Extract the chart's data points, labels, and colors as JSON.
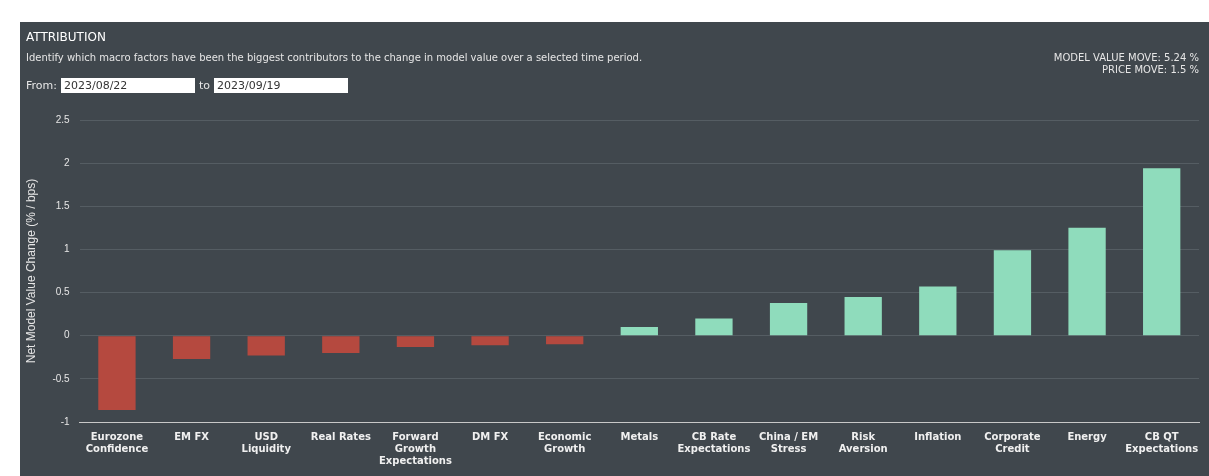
{
  "chart_data": {
    "type": "bar",
    "title": "ATTRIBUTION",
    "subtitle": "Identify which macro factors have been the biggest contributors to the change in model value over a selected time period.",
    "ylabel": "Net Model Value Change (% / bps)",
    "categories": [
      "Eurozone Confidence",
      "EM FX",
      "USD Liquidity",
      "Real Rates",
      "Forward Growth Expectations",
      "DM FX",
      "Economic Growth",
      "Metals",
      "CB Rate Expectations",
      "China / EM Stress",
      "Risk Aversion",
      "Inflation",
      "Corporate Credit",
      "Energy",
      "CB QT Expectations"
    ],
    "values": [
      -0.86,
      -0.27,
      -0.23,
      -0.2,
      -0.13,
      -0.11,
      -0.1,
      0.1,
      0.2,
      0.38,
      0.45,
      0.57,
      0.99,
      1.25,
      1.94
    ],
    "colors": [
      "#b5493f",
      "#b5493f",
      "#b5493f",
      "#b5493f",
      "#b5493f",
      "#b5493f",
      "#b5493f",
      "#8fdcbc",
      "#8fdcbc",
      "#8fdcbc",
      "#8fdcbc",
      "#8fdcbc",
      "#8fdcbc",
      "#8fdcbc",
      "#8fdcbc"
    ],
    "ylim": [
      -1,
      2.5
    ],
    "yticks": [
      -1,
      -0.5,
      0,
      0.5,
      1,
      1.5,
      2,
      2.5
    ],
    "grid": "y",
    "legend": false,
    "annotations": [
      "From:",
      "2023/08/22",
      "to",
      "2023/09/19",
      "MODEL VALUE MOVE: 5.24 %",
      "PRICE MOVE: 1.5 %"
    ]
  }
}
